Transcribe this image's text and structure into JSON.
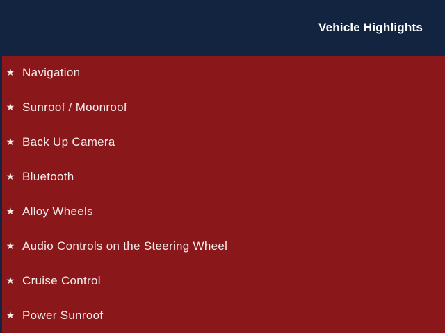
{
  "theme": {
    "header_bg": "#12243f",
    "body_bg": "#8a1719",
    "item_text": "#f6ecec",
    "header_text": "#ffffff"
  },
  "header": {
    "title": "Vehicle Highlights"
  },
  "highlights": {
    "bullet": "★",
    "items": [
      {
        "label": "Navigation"
      },
      {
        "label": "Sunroof / Moonroof"
      },
      {
        "label": "Back Up Camera"
      },
      {
        "label": "Bluetooth"
      },
      {
        "label": "Alloy Wheels"
      },
      {
        "label": "Audio Controls on the Steering Wheel"
      },
      {
        "label": "Cruise Control"
      },
      {
        "label": "Power Sunroof"
      }
    ]
  }
}
